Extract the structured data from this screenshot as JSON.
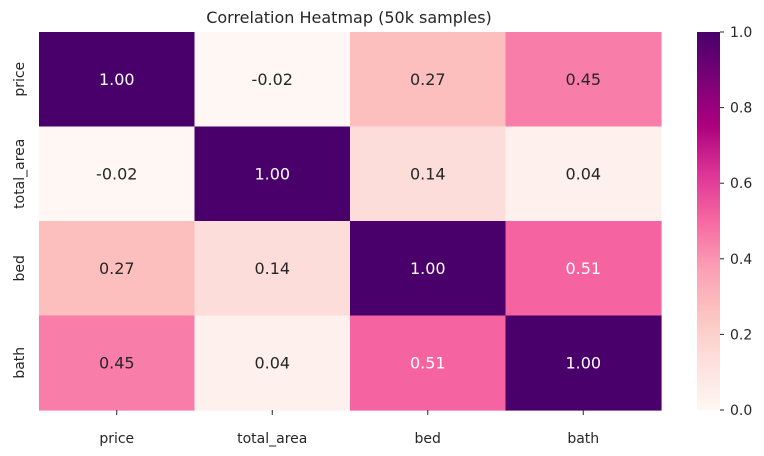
{
  "chart_data": {
    "type": "heatmap",
    "title": "Correlation Heatmap (50k samples)",
    "x_categories": [
      "price",
      "total_area",
      "bed",
      "bath"
    ],
    "y_categories": [
      "price",
      "total_area",
      "bed",
      "bath"
    ],
    "values": [
      [
        1.0,
        -0.02,
        0.27,
        0.45
      ],
      [
        -0.02,
        1.0,
        0.14,
        0.04
      ],
      [
        0.27,
        0.14,
        1.0,
        0.51
      ],
      [
        0.45,
        0.04,
        0.51,
        1.0
      ]
    ],
    "value_labels": [
      [
        "1.00",
        "-0.02",
        "0.27",
        "0.45"
      ],
      [
        "-0.02",
        "1.00",
        "0.14",
        "0.04"
      ],
      [
        "0.27",
        "0.14",
        "1.00",
        "0.51"
      ],
      [
        "0.45",
        "0.04",
        "0.51",
        "1.00"
      ]
    ],
    "colorbar": {
      "range": [
        0.0,
        1.0
      ],
      "ticks": [
        "0.0",
        "0.2",
        "0.4",
        "0.6",
        "0.8",
        "1.0"
      ],
      "colormap": "RdPu"
    },
    "xlabel": "",
    "ylabel": ""
  }
}
